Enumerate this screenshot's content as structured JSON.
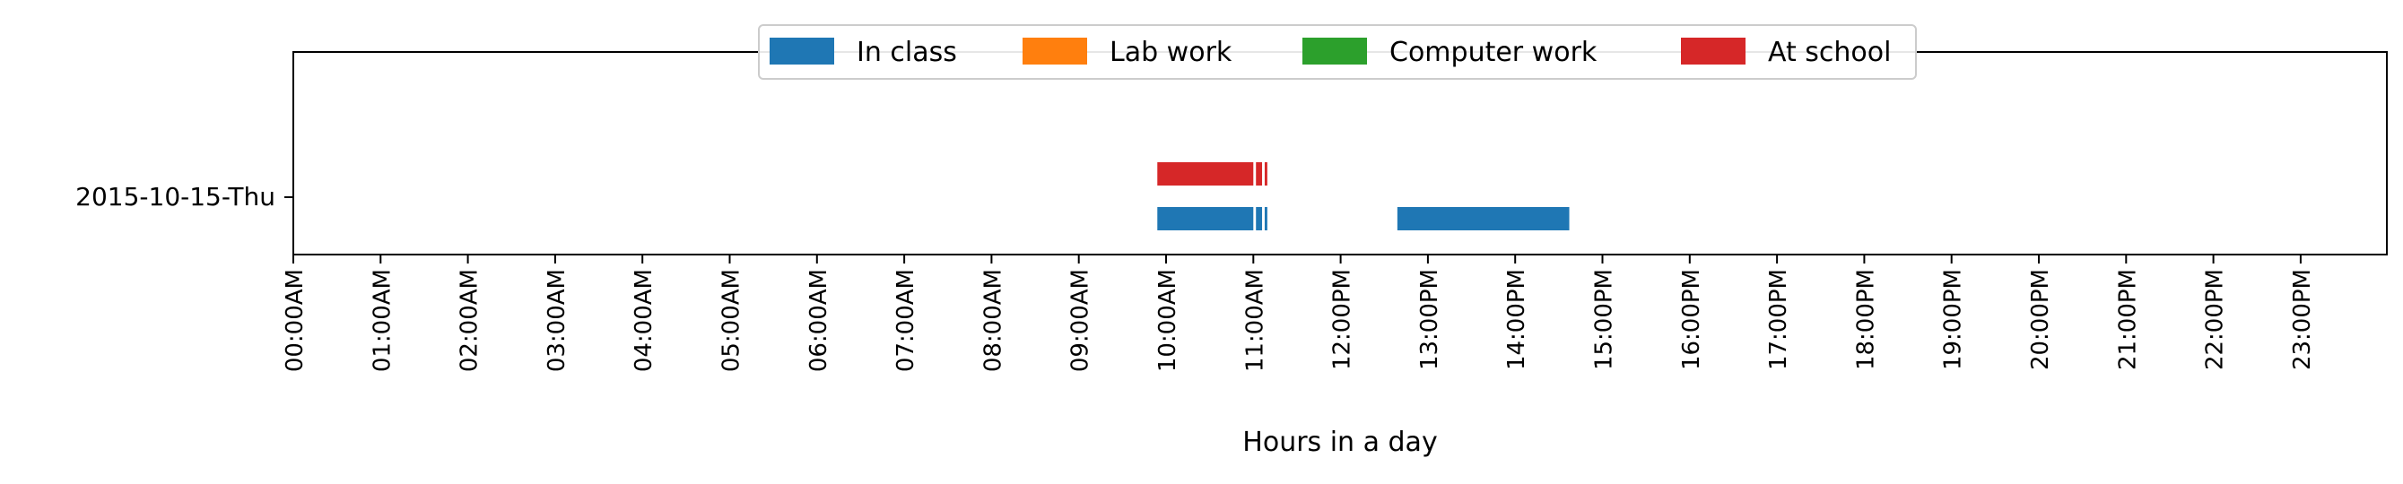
{
  "chart_data": {
    "type": "timeline",
    "title": "",
    "xlabel": "Hours in a day",
    "ylabel": "",
    "xlim_hours": [
      0,
      24
    ],
    "categories": [
      "2015-10-15-Thu"
    ],
    "x_tick_labels": [
      "00:00AM",
      "01:00AM",
      "02:00AM",
      "03:00AM",
      "04:00AM",
      "05:00AM",
      "06:00AM",
      "07:00AM",
      "08:00AM",
      "09:00AM",
      "10:00AM",
      "11:00AM",
      "12:00PM",
      "13:00PM",
      "14:00PM",
      "15:00PM",
      "16:00PM",
      "17:00PM",
      "18:00PM",
      "19:00PM",
      "20:00PM",
      "21:00PM",
      "22:00PM",
      "23:00PM"
    ],
    "legend_position": "top-center",
    "grid": false,
    "series": [
      {
        "name": "In class",
        "color": "#1f77b4",
        "intervals": [
          {
            "category": "2015-10-15-Thu",
            "start": 9.9,
            "end": 11.0
          },
          {
            "category": "2015-10-15-Thu",
            "start": 11.03,
            "end": 11.1
          },
          {
            "category": "2015-10-15-Thu",
            "start": 11.13,
            "end": 11.16
          },
          {
            "category": "2015-10-15-Thu",
            "start": 12.65,
            "end": 14.62
          }
        ]
      },
      {
        "name": "Lab work",
        "color": "#ff7f0e",
        "intervals": []
      },
      {
        "name": "Computer work",
        "color": "#2ca02c",
        "intervals": []
      },
      {
        "name": "At school",
        "color": "#d62728",
        "intervals": [
          {
            "category": "2015-10-15-Thu",
            "start": 9.9,
            "end": 11.0
          },
          {
            "category": "2015-10-15-Thu",
            "start": 11.03,
            "end": 11.1
          },
          {
            "category": "2015-10-15-Thu",
            "start": 11.13,
            "end": 11.16
          }
        ]
      }
    ]
  }
}
